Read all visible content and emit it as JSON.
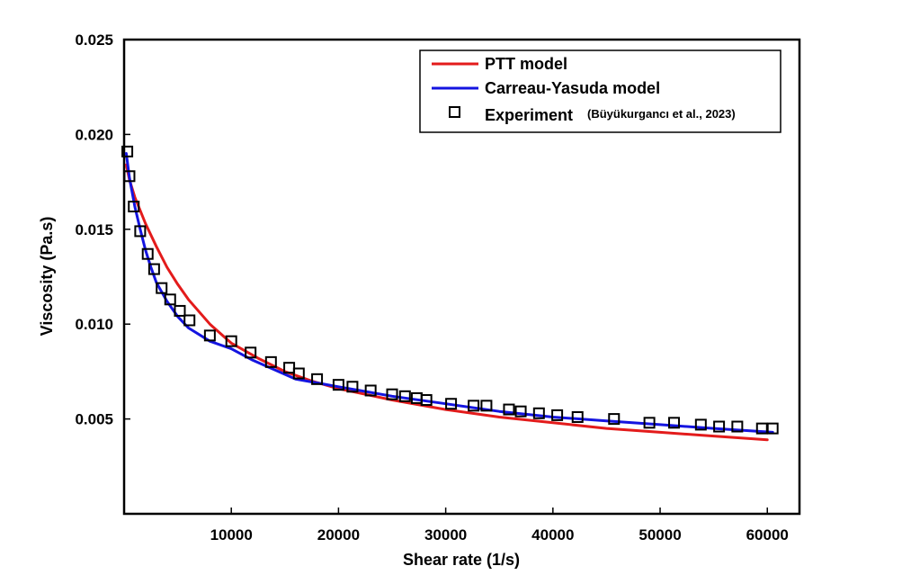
{
  "chart_data": {
    "type": "line",
    "xlabel": "Shear rate (1/s)",
    "ylabel": "Viscosity (Pa.s)",
    "xlim": [
      0,
      63000
    ],
    "ylim": [
      0,
      0.025
    ],
    "x_ticks": [
      10000,
      20000,
      30000,
      40000,
      50000,
      60000
    ],
    "x_tick_labels": [
      "10000",
      "20000",
      "30000",
      "40000",
      "50000",
      "60000"
    ],
    "y_ticks": [
      0.005,
      0.01,
      0.015,
      0.02,
      0.025
    ],
    "y_tick_labels": [
      "0.005",
      "0.010",
      "0.015",
      "0.020",
      "0.025"
    ],
    "grid": false,
    "legend_position": "top-right",
    "series": [
      {
        "name": "PTT model",
        "style": "line",
        "color": "#e31b1b",
        "x": [
          200,
          500,
          1000,
          2000,
          3000,
          4000,
          5000,
          6000,
          8000,
          10000,
          12500,
          15000,
          17500,
          20000,
          22500,
          25000,
          30000,
          35000,
          40000,
          45000,
          50000,
          55000,
          60000
        ],
        "y": [
          0.0184,
          0.0176,
          0.0167,
          0.0153,
          0.0141,
          0.013,
          0.0121,
          0.0113,
          0.01,
          0.009,
          0.0082,
          0.0075,
          0.007,
          0.0066,
          0.0063,
          0.006,
          0.0055,
          0.0051,
          0.0048,
          0.0045,
          0.0043,
          0.0041,
          0.0039
        ]
      },
      {
        "name": "Carreau-Yasuda model",
        "style": "line",
        "color": "#1414e0",
        "x": [
          200,
          500,
          1000,
          1500,
          2000,
          2500,
          3000,
          4000,
          5000,
          6000,
          8000,
          10000,
          12000,
          14000,
          16000,
          18000,
          20000,
          22000,
          25000,
          30000,
          35000,
          40000,
          45000,
          50000,
          55000,
          60500
        ],
        "y": [
          0.019,
          0.0177,
          0.0162,
          0.015,
          0.0139,
          0.013,
          0.0122,
          0.0112,
          0.0104,
          0.0098,
          0.0091,
          0.0087,
          0.0081,
          0.0076,
          0.0071,
          0.0069,
          0.0067,
          0.0065,
          0.0062,
          0.0058,
          0.0054,
          0.0051,
          0.0049,
          0.0047,
          0.0045,
          0.0043
        ]
      },
      {
        "name": "Experiment",
        "citation": "(Büyükurgancı et al., 2023)",
        "style": "marker",
        "marker": "square",
        "color": "#000000",
        "x": [
          300,
          500,
          900,
          1500,
          2200,
          2800,
          3500,
          4300,
          5200,
          6100,
          8000,
          10000,
          11800,
          13700,
          15400,
          16300,
          18000,
          20000,
          21300,
          23000,
          25000,
          26200,
          27300,
          28200,
          30500,
          32600,
          33800,
          35900,
          37000,
          38700,
          40400,
          42300,
          45700,
          49000,
          51300,
          53800,
          55500,
          57200,
          59500,
          60500
        ],
        "y": [
          0.0191,
          0.0178,
          0.0162,
          0.0149,
          0.0137,
          0.0129,
          0.0119,
          0.0113,
          0.0107,
          0.0102,
          0.0094,
          0.0091,
          0.0085,
          0.008,
          0.0077,
          0.0074,
          0.0071,
          0.0068,
          0.0067,
          0.0065,
          0.0063,
          0.0062,
          0.0061,
          0.006,
          0.0058,
          0.0057,
          0.0057,
          0.0055,
          0.0054,
          0.0053,
          0.0052,
          0.0051,
          0.005,
          0.0048,
          0.0048,
          0.0047,
          0.0046,
          0.0046,
          0.0045,
          0.0045
        ]
      }
    ]
  }
}
